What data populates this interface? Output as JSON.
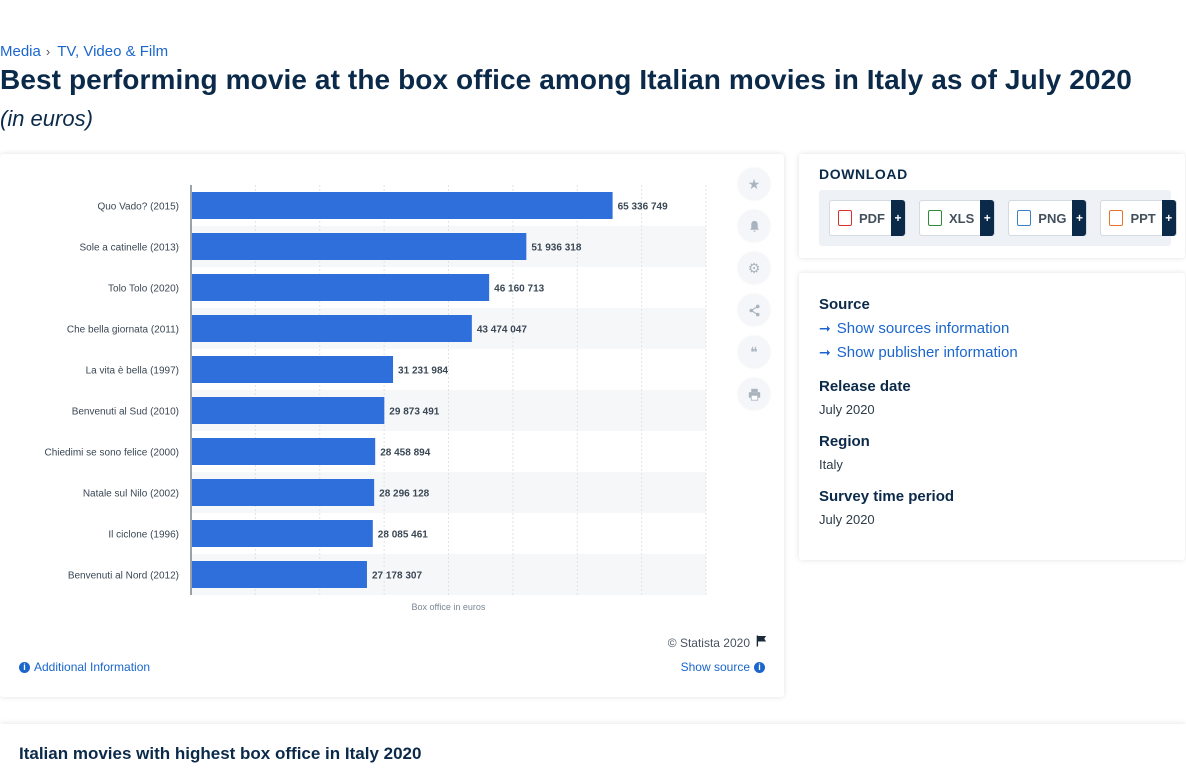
{
  "breadcrumb": {
    "items": [
      "Media",
      "TV, Video & Film"
    ],
    "separator": "›"
  },
  "page": {
    "title": "Best performing movie at the box office among Italian movies in Italy as of July 2020",
    "subtitle": "(in euros)"
  },
  "chart_data": {
    "type": "bar",
    "orientation": "horizontal",
    "categories": [
      "Quo Vado? (2015)",
      "Sole a catinelle (2013)",
      "Tolo Tolo (2020)",
      "Che bella giornata (2011)",
      "La vita è bella (1997)",
      "Benvenuti al Sud (2010)",
      "Chiedimi se sono felice (2000)",
      "Natale sul Nilo (2002)",
      "Il ciclone (1996)",
      "Benvenuti al Nord (2012)"
    ],
    "values": [
      65336749,
      51936318,
      46160713,
      43474047,
      31231984,
      29873491,
      28458894,
      28296128,
      28085461,
      27178307
    ],
    "value_labels": [
      "65 336 749",
      "51 936 318",
      "46 160 713",
      "43 474 047",
      "31 231 984",
      "29 873 491",
      "28 458 894",
      "28 296 128",
      "28 085 461",
      "27 178 307"
    ],
    "xlabel": "Box office in euros",
    "ylabel": "",
    "xlim": [
      0,
      80000000
    ],
    "grid": true,
    "bar_color": "#2f6fdc"
  },
  "chart_footer": {
    "copyright": "© Statista 2020",
    "additional_info": "Additional Information",
    "show_source": "Show source"
  },
  "tools": [
    "star-icon",
    "bell-icon",
    "gear-icon",
    "share-icon",
    "quote-icon",
    "print-icon"
  ],
  "download": {
    "title": "DOWNLOAD",
    "buttons": [
      {
        "label": "PDF",
        "color": "#d9302c"
      },
      {
        "label": "XLS",
        "color": "#2e8b3a"
      },
      {
        "label": "PNG",
        "color": "#3b82c4"
      },
      {
        "label": "PPT",
        "color": "#e8752a"
      }
    ],
    "plus": "+"
  },
  "meta": {
    "source_label": "Source",
    "show_sources": "Show sources information",
    "show_publisher": "Show publisher information",
    "release_label": "Release date",
    "release_value": "July 2020",
    "region_label": "Region",
    "region_value": "Italy",
    "survey_label": "Survey time period",
    "survey_value": "July 2020"
  },
  "related": {
    "title": "Italian movies with highest box office in Italy 2020"
  }
}
